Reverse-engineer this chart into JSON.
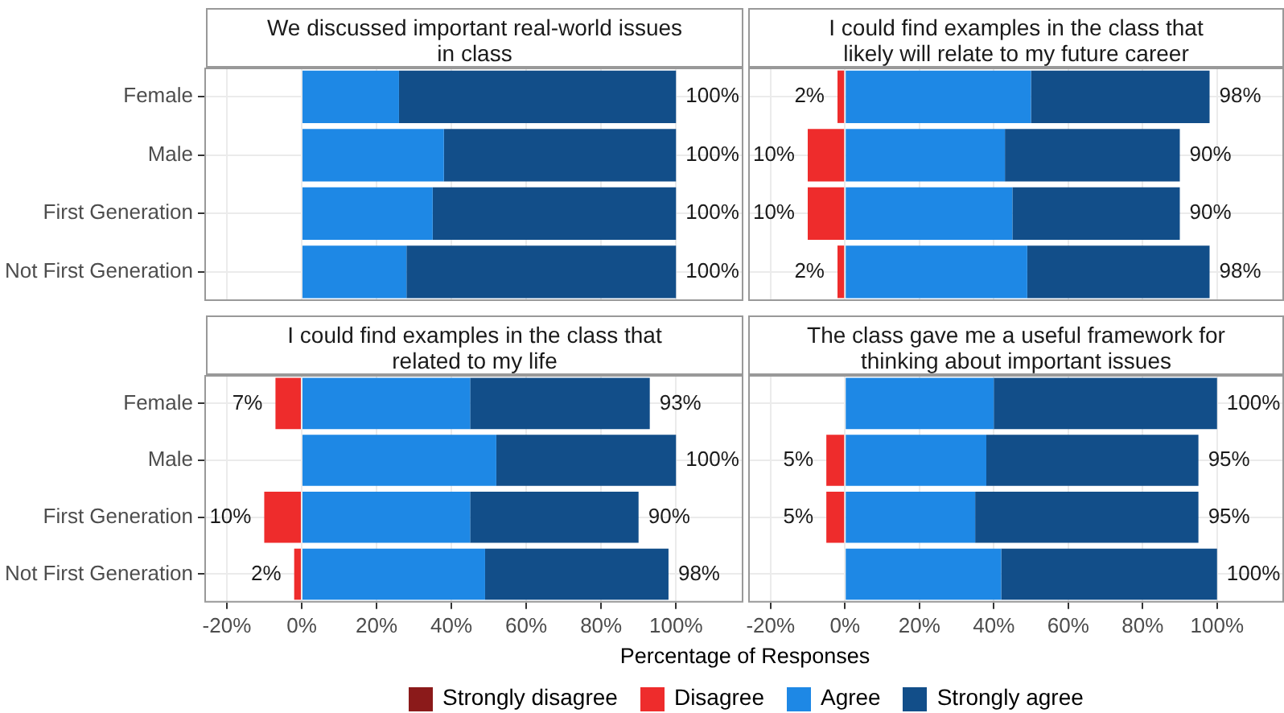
{
  "chart_data": [
    {
      "type": "bar",
      "orientation": "horizontal",
      "stacked": true,
      "title": "We discussed important real-world issues in class",
      "legend": "bottom",
      "categories": [
        "Female",
        "Male",
        "First Generation",
        "Not First Generation"
      ],
      "xlim": [
        -26,
        118
      ],
      "xticks": [
        -20,
        0,
        20,
        40,
        60,
        80,
        100
      ],
      "grid": true,
      "tick_labels": "y",
      "annotations": [
        {
          "text": "100%",
          "x": 100,
          "y": "Female"
        },
        {
          "text": "100%",
          "x": 100,
          "y": "Male"
        },
        {
          "text": "100%",
          "x": 100,
          "y": "First Generation"
        },
        {
          "text": "100%",
          "x": 100,
          "y": "Not First Generation"
        }
      ],
      "series": [
        {
          "name": "Strongly disagree",
          "color": "#8b1a1a",
          "values": [
            null,
            null,
            null,
            null
          ]
        },
        {
          "name": "Disagree",
          "color": "#ee2c2c",
          "values": [
            null,
            null,
            null,
            null
          ]
        },
        {
          "name": "Agree",
          "color": "#1e88e5",
          "values": [
            26,
            38,
            35,
            28
          ]
        },
        {
          "name": "Strongly agree",
          "color": "#124e89",
          "values": [
            74,
            62,
            65,
            72
          ]
        }
      ]
    },
    {
      "type": "bar",
      "orientation": "horizontal",
      "stacked": true,
      "title": "I could find examples in the class that likely will relate to my future career",
      "categories": [
        "Female",
        "Male",
        "First Generation",
        "Not First Generation"
      ],
      "xlim": [
        -26,
        118
      ],
      "xticks": [
        -20,
        0,
        20,
        40,
        60,
        80,
        100
      ],
      "grid": true,
      "tick_labels": false,
      "annotations": [
        {
          "text": "2%",
          "x": -2,
          "y": "Female"
        },
        {
          "text": "10%",
          "x": -10,
          "y": "Male"
        },
        {
          "text": "10%",
          "x": -10,
          "y": "First Generation"
        },
        {
          "text": "2%",
          "x": -2,
          "y": "Not First Generation"
        },
        {
          "text": "98%",
          "x": 98,
          "y": "Female"
        },
        {
          "text": "90%",
          "x": 90,
          "y": "Male"
        },
        {
          "text": "90%",
          "x": 90,
          "y": "First Generation"
        },
        {
          "text": "98%",
          "x": 98,
          "y": "Not First Generation"
        }
      ],
      "series": [
        {
          "color": "#8b1a1a",
          "values": [
            null,
            null,
            null,
            null
          ]
        },
        {
          "color": "#ee2c2c",
          "values": [
            -2,
            -10,
            -10,
            -2
          ]
        },
        {
          "color": "#1e88e5",
          "values": [
            50,
            43,
            45,
            49
          ]
        },
        {
          "color": "#124e89",
          "values": [
            48,
            47,
            45,
            49
          ]
        }
      ]
    },
    {
      "type": "bar",
      "orientation": "horizontal",
      "stacked": true,
      "title": "I could find examples in the class that related to my life",
      "xlabel": "Percentage of Responses",
      "categories": [
        "Female",
        "Male",
        "First Generation",
        "Not First Generation"
      ],
      "xlim": [
        -26,
        118
      ],
      "xticks": [
        {
          "value": -20,
          "label": "-20%"
        },
        {
          "value": 0,
          "label": "0%"
        },
        {
          "value": 20,
          "label": "20%"
        },
        {
          "value": 40,
          "label": "40%"
        },
        {
          "value": 60,
          "label": "60%"
        },
        {
          "value": 80,
          "label": "80%"
        },
        {
          "value": 100,
          "label": "100%"
        }
      ],
      "grid": true,
      "annotations": [
        {
          "text": "7%",
          "x": -7,
          "y": "Female"
        },
        {
          "text": "10%",
          "x": -10,
          "y": "First Generation"
        },
        {
          "text": "2%",
          "x": -2,
          "y": "Not First Generation"
        },
        {
          "text": "93%",
          "x": 93,
          "y": "Female"
        },
        {
          "text": "100%",
          "x": 100,
          "y": "Male"
        },
        {
          "text": "90%",
          "x": 90,
          "y": "First Generation"
        },
        {
          "text": "98%",
          "x": 98,
          "y": "Not First Generation"
        }
      ],
      "series": [
        {
          "color": "#8b1a1a",
          "values": [
            null,
            null,
            null,
            null
          ]
        },
        {
          "color": "#ee2c2c",
          "values": [
            -7,
            null,
            -10,
            -2
          ]
        },
        {
          "color": "#1e88e5",
          "values": [
            45,
            52,
            45,
            49
          ]
        },
        {
          "color": "#124e89",
          "values": [
            48,
            48,
            45,
            49
          ]
        }
      ]
    },
    {
      "type": "bar",
      "orientation": "horizontal",
      "stacked": true,
      "title": "The class gave me a useful framework for thinking about important issues",
      "categories": [
        "Female",
        "Male",
        "First Generation",
        "Not First Generation"
      ],
      "xlim": [
        -26,
        118
      ],
      "xticks": [
        {
          "value": -20,
          "label": "-20%"
        },
        {
          "value": 0,
          "label": "0%"
        },
        {
          "value": 20,
          "label": "20%"
        },
        {
          "value": 40,
          "label": "40%"
        },
        {
          "value": 60,
          "label": "60%"
        },
        {
          "value": 80,
          "label": "80%"
        },
        {
          "value": 100,
          "label": "100%"
        }
      ],
      "grid": true,
      "tick_labels": "x",
      "annotations": [
        {
          "text": "5%",
          "x": -5,
          "y": "Male"
        },
        {
          "text": "5%",
          "x": -5,
          "y": "First Generation"
        },
        {
          "text": "100%",
          "x": 100,
          "y": "Female"
        },
        {
          "text": "95%",
          "x": 95,
          "y": "Male"
        },
        {
          "text": "95%",
          "x": 95,
          "y": "First Generation"
        },
        {
          "text": "100%",
          "x": 100,
          "y": "Not First Generation"
        }
      ],
      "series": [
        {
          "color": "#8b1a1a",
          "values": [
            null,
            null,
            null,
            null
          ]
        },
        {
          "color": "#ee2c2c",
          "values": [
            null,
            -5,
            -5,
            null
          ]
        },
        {
          "color": "#1e88e5",
          "values": [
            40,
            38,
            35,
            42
          ]
        },
        {
          "color": "#124e89",
          "values": [
            60,
            57,
            60,
            58
          ]
        }
      ]
    }
  ]
}
